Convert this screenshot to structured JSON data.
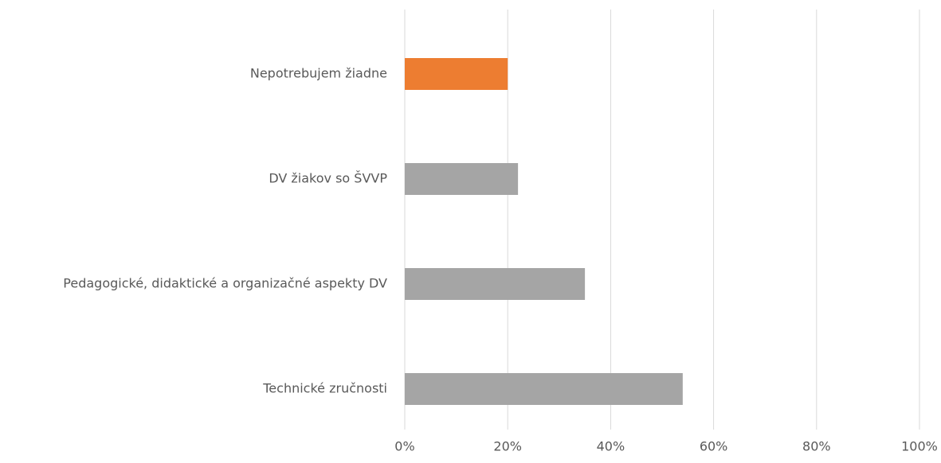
{
  "chart_data": {
    "type": "bar",
    "orientation": "horizontal",
    "categories": [
      "Nepotrebujem žiadne",
      "DV žiakov so ŠVVP",
      "Pedagogické, didaktické a organizačné aspekty DV",
      "Technické zručnosti"
    ],
    "values": [
      20,
      22,
      35,
      54
    ],
    "colors": [
      "#ed7d31",
      "#a5a5a5",
      "#a5a5a5",
      "#a5a5a5"
    ],
    "xlim": [
      0,
      100
    ],
    "xticks": [
      {
        "value": 0,
        "label": "0%"
      },
      {
        "value": 20,
        "label": "20%"
      },
      {
        "value": 40,
        "label": "40%"
      },
      {
        "value": 60,
        "label": "60%"
      },
      {
        "value": 80,
        "label": "80%"
      },
      {
        "value": 100,
        "label": "100%"
      }
    ],
    "grid": true
  }
}
